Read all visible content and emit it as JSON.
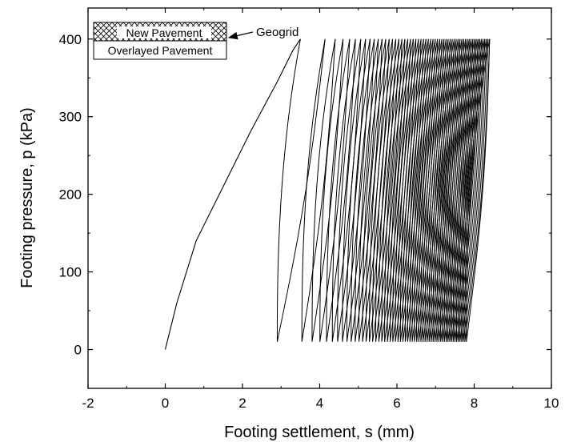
{
  "chart_data": {
    "type": "line",
    "xlabel": "Footing settlement, s (mm)",
    "ylabel": "Footing pressure, p (kPa)",
    "xlim": [
      -2,
      10
    ],
    "ylim": [
      -50,
      440
    ],
    "x_ticks": [
      -2,
      0,
      2,
      4,
      6,
      8,
      10
    ],
    "y_ticks": [
      0,
      100,
      200,
      300,
      400
    ],
    "x_tick_labels": [
      "-2",
      "0",
      "2",
      "4",
      "6",
      "8",
      "10"
    ],
    "y_tick_labels": [
      "0",
      "100",
      "200",
      "300",
      "400"
    ],
    "grid": false,
    "legend_position": "top-left",
    "line_color": "#000000",
    "legend": {
      "box1_label": "New Pavement",
      "box2_label": "Overlayed Pavement"
    },
    "annotation": {
      "text": "Geogrid"
    },
    "series": [
      {
        "initial_loading": [
          [
            0,
            0
          ],
          [
            0.3,
            60
          ],
          [
            0.8,
            140
          ],
          [
            1.5,
            210
          ],
          [
            2.2,
            280
          ],
          [
            2.9,
            345
          ],
          [
            3.3,
            385
          ],
          [
            3.5,
            400
          ]
        ],
        "cycles": {
          "count": 60,
          "p_min": 10,
          "p_max": 400,
          "unload_start_first": 3.5,
          "unload_start_last": 8.4,
          "reload_start_first": 2.9,
          "reload_start_last": 7.8
        }
      }
    ]
  }
}
